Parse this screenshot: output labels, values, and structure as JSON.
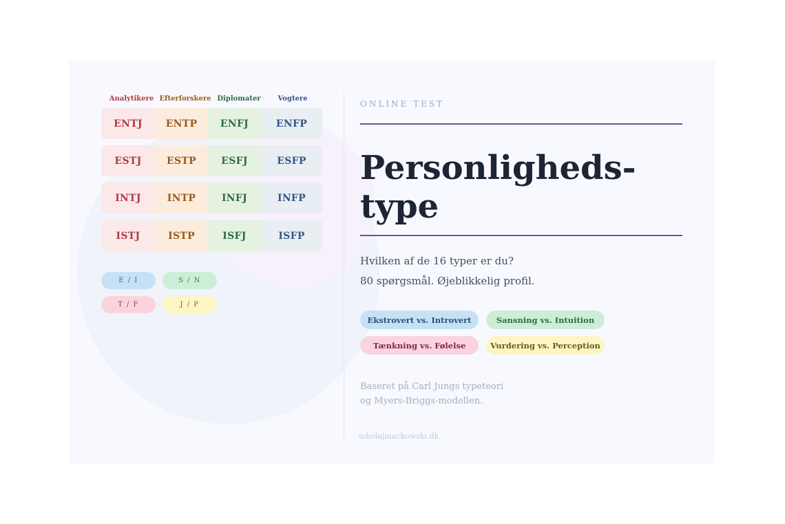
{
  "grid": {
    "headers": [
      "Analytikere",
      "Efterforskere",
      "Diplomater",
      "Vogtere"
    ],
    "header_colors": [
      "#b03a43",
      "#9a5a1a",
      "#2f6a48",
      "#33578c"
    ],
    "rows": [
      [
        "ENTJ",
        "ENTP",
        "ENFJ",
        "ENFP"
      ],
      [
        "ESTJ",
        "ESTP",
        "ESFJ",
        "ESFP"
      ],
      [
        "INTJ",
        "INTP",
        "INFJ",
        "INFP"
      ],
      [
        "ISTJ",
        "ISTP",
        "ISFJ",
        "ISFP"
      ]
    ]
  },
  "dimensions": {
    "ei": "E / I",
    "sn": "S / N",
    "tf": "T / F",
    "jp": "J / P"
  },
  "eyebrow": "ONLINE TEST",
  "title_line1": "Personligheds-",
  "title_line2": "type",
  "subtitle_line1": "Hvilken af de 16 typer er du?",
  "subtitle_line2": "80 spørgsmål. Øjeblikkelig profil.",
  "tags": {
    "ei": "Ekstrovert vs. Introvert",
    "sn": "Sansning vs. Intuition",
    "tf": "Tænkning vs. Følelse",
    "jp": "Vurdering vs. Perception"
  },
  "footer_line1": "Baseret på Carl Jungs typeteori",
  "footer_line2": "og Myers-Briggs-modellen.",
  "url": "nikolajmackowski.dk",
  "colors": {
    "accent_rule": "#6a4fa3",
    "ei": "#c5e1f6",
    "sn": "#cdeed6",
    "tf": "#fbd3df",
    "jp": "#fcf6c4"
  }
}
